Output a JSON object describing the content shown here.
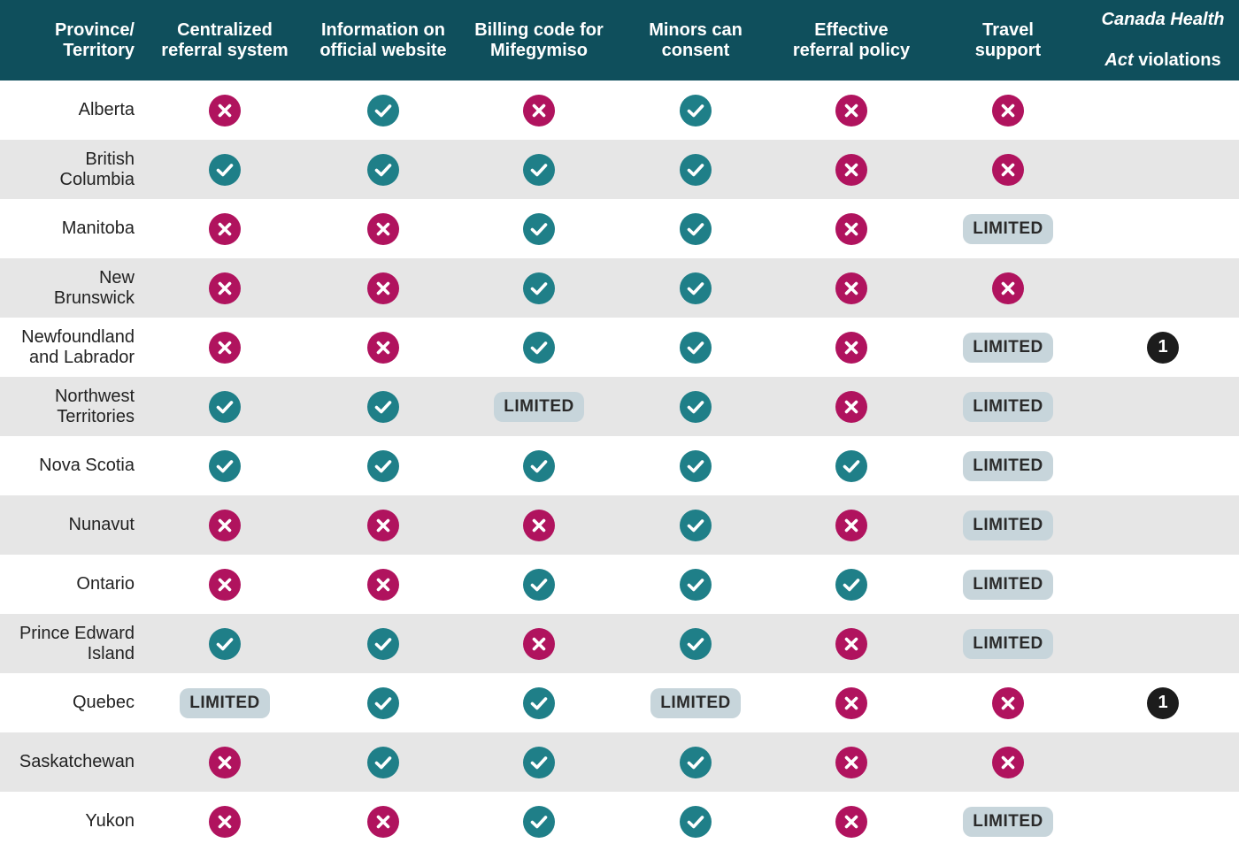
{
  "colors": {
    "header_bg": "#0f4f5c",
    "yes": "#1f7f88",
    "no": "#b0135e",
    "limited_bg": "#c7d5db",
    "row_alt": "#e6e6e6",
    "violation_bg": "#1c1c1c"
  },
  "icons": {
    "yes": "check-circle-icon",
    "no": "x-circle-icon"
  },
  "columns": [
    {
      "key": "province",
      "label": "Province/\nTerritory"
    },
    {
      "key": "centralized",
      "label": "Centralized\nreferral system"
    },
    {
      "key": "website",
      "label": "Information on\nofficial website"
    },
    {
      "key": "billing",
      "label": "Billing code for\nMifegymiso"
    },
    {
      "key": "minors",
      "label": "Minors can\nconsent"
    },
    {
      "key": "referral",
      "label": "Effective\nreferral policy"
    },
    {
      "key": "travel",
      "label": "Travel\nsupport"
    },
    {
      "key": "cha",
      "label_italic_1": "Canada Health",
      "label_italic_2": "Act",
      "label_rest_2": " violations"
    }
  ],
  "limited_label": "LIMITED",
  "rows": [
    {
      "name": "Alberta",
      "values": [
        "no",
        "yes",
        "no",
        "yes",
        "no",
        "no"
      ],
      "violations": ""
    },
    {
      "name": "British\nColumbia",
      "values": [
        "yes",
        "yes",
        "yes",
        "yes",
        "no",
        "no"
      ],
      "violations": ""
    },
    {
      "name": "Manitoba",
      "values": [
        "no",
        "no",
        "yes",
        "yes",
        "no",
        "limited"
      ],
      "violations": ""
    },
    {
      "name": "New\nBrunswick",
      "values": [
        "no",
        "no",
        "yes",
        "yes",
        "no",
        "no"
      ],
      "violations": ""
    },
    {
      "name": "Newfoundland\nand Labrador",
      "values": [
        "no",
        "no",
        "yes",
        "yes",
        "no",
        "limited"
      ],
      "violations": "1"
    },
    {
      "name": "Northwest\nTerritories",
      "values": [
        "yes",
        "yes",
        "limited",
        "yes",
        "no",
        "limited"
      ],
      "violations": ""
    },
    {
      "name": "Nova Scotia",
      "values": [
        "yes",
        "yes",
        "yes",
        "yes",
        "yes",
        "limited"
      ],
      "violations": ""
    },
    {
      "name": "Nunavut",
      "values": [
        "no",
        "no",
        "no",
        "yes",
        "no",
        "limited"
      ],
      "violations": ""
    },
    {
      "name": "Ontario",
      "values": [
        "no",
        "no",
        "yes",
        "yes",
        "yes",
        "limited"
      ],
      "violations": ""
    },
    {
      "name": "Prince Edward\nIsland",
      "values": [
        "yes",
        "yes",
        "no",
        "yes",
        "no",
        "limited"
      ],
      "violations": ""
    },
    {
      "name": "Quebec",
      "values": [
        "limited",
        "yes",
        "yes",
        "limited",
        "no",
        "no"
      ],
      "violations": "1"
    },
    {
      "name": "Saskatchewan",
      "values": [
        "no",
        "yes",
        "yes",
        "yes",
        "no",
        "no"
      ],
      "violations": ""
    },
    {
      "name": "Yukon",
      "values": [
        "no",
        "no",
        "yes",
        "yes",
        "no",
        "limited"
      ],
      "violations": ""
    }
  ]
}
